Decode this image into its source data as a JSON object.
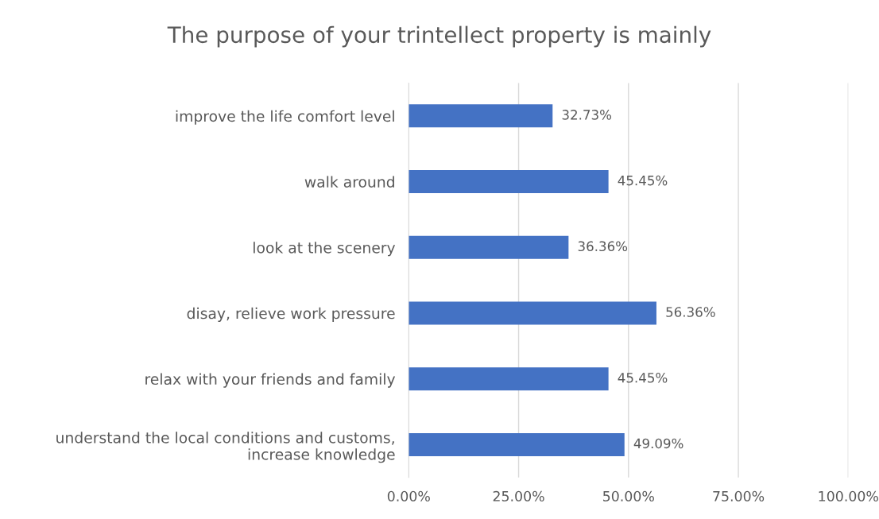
{
  "chart_data": {
    "type": "bar",
    "orientation": "horizontal",
    "title": "The purpose of your trintellect property is mainly",
    "categories": [
      "improve the life comfort level",
      "walk around",
      "look at the scenery",
      "disay, relieve work pressure",
      "relax with your friends and family",
      "understand the local conditions and customs,\nincrease knowledge"
    ],
    "values": [
      32.73,
      45.45,
      36.36,
      56.36,
      45.45,
      49.09
    ],
    "value_labels": [
      "32.73%",
      "45.45%",
      "36.36%",
      "56.36%",
      "45.45%",
      "49.09%"
    ],
    "color": "#4472c4",
    "xlim": [
      0,
      100
    ],
    "xticks": [
      {
        "value": 0,
        "label": "0.00%"
      },
      {
        "value": 25,
        "label": "25.00%"
      },
      {
        "value": 50,
        "label": "50.00%"
      },
      {
        "value": 75,
        "label": "75.00%"
      },
      {
        "value": 100,
        "label": "100.00%"
      }
    ],
    "grid": "x",
    "legend": false
  }
}
